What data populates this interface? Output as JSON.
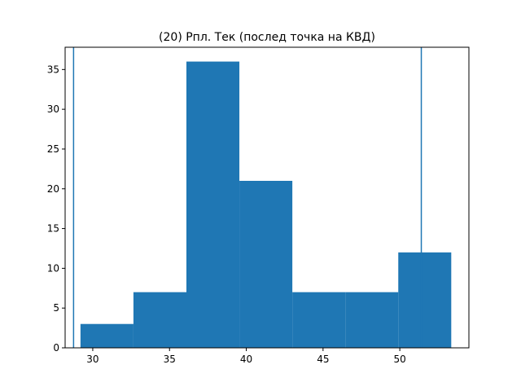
{
  "chart_data": {
    "type": "bar",
    "title": "(20) Рпл. Тек (послед точка на КВД)",
    "xlabel": "",
    "ylabel": "",
    "xlim": [
      28.2,
      54.5
    ],
    "ylim": [
      0,
      37.8
    ],
    "x_ticks": [
      30,
      35,
      40,
      45,
      50
    ],
    "y_ticks": [
      0,
      5,
      10,
      15,
      20,
      25,
      30,
      35
    ],
    "bin_edges": [
      29.2,
      32.65,
      36.1,
      39.55,
      43.0,
      46.45,
      49.9,
      53.35
    ],
    "counts": [
      3,
      7,
      36,
      21,
      7,
      7,
      12
    ],
    "vlines": [
      28.75,
      51.4
    ],
    "grid": false,
    "legend": "none",
    "colors": {
      "bar": "#1f77b4",
      "line": "#1f77b4"
    }
  }
}
